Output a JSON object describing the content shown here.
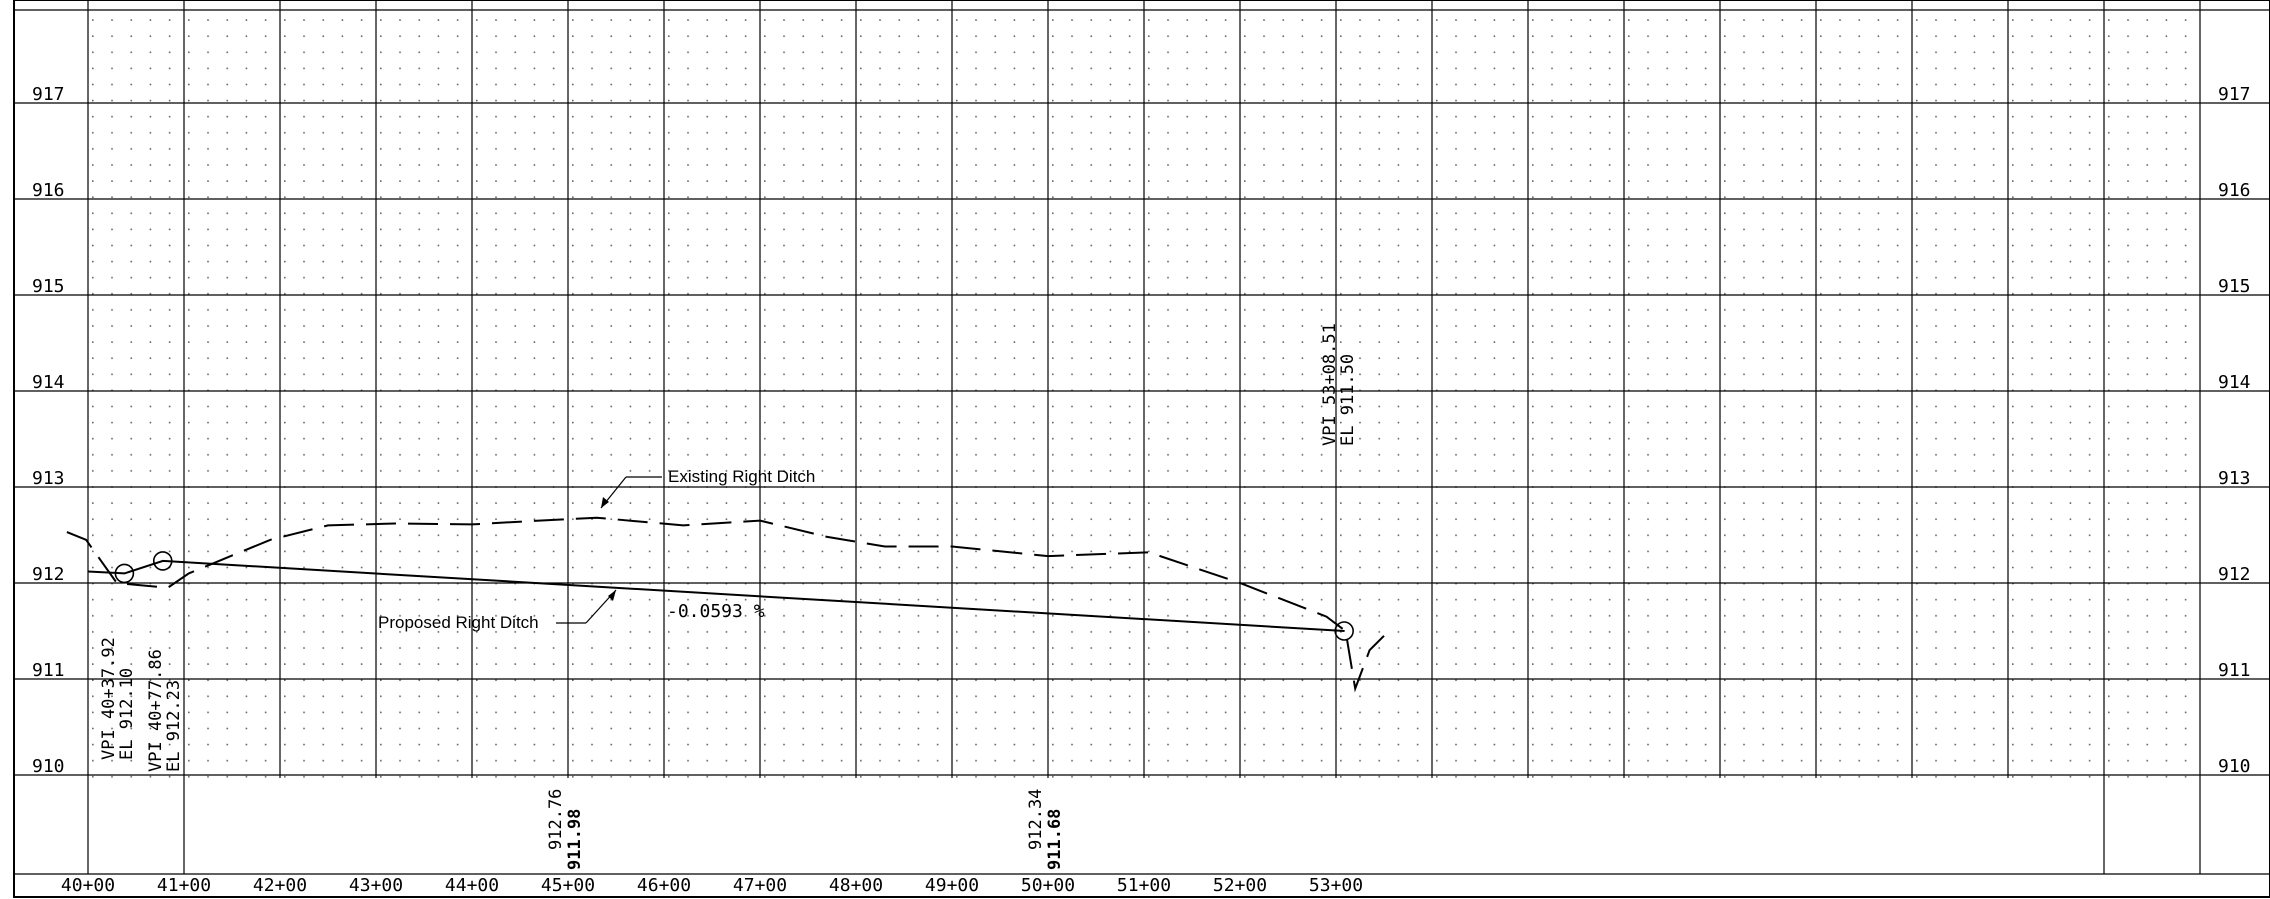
{
  "elevation_labels": [
    "917",
    "916",
    "915",
    "914",
    "913",
    "912",
    "911",
    "910"
  ],
  "station_labels": [
    "40+00",
    "41+00",
    "42+00",
    "43+00",
    "44+00",
    "45+00",
    "46+00",
    "47+00",
    "48+00",
    "49+00",
    "50+00",
    "51+00",
    "52+00",
    "53+00"
  ],
  "annotations": {
    "existing_ditch": "Existing Right Ditch",
    "proposed_ditch": "Proposed Right Ditch",
    "grade": "-0.0593 %",
    "vpi1_station": "VPI 40+37.92",
    "vpi1_elev": "EL 912.10",
    "vpi2_station": "VPI 40+77.86",
    "vpi2_elev": "EL 912.23",
    "vpi3_station": "VPI 53+08.51",
    "vpi3_elev": "EL 911.50"
  },
  "bottom_elevations": [
    {
      "existing": "912.76",
      "proposed": "911.98"
    },
    {
      "existing": "912.34",
      "proposed": "911.68"
    }
  ],
  "chart_data": {
    "type": "line",
    "x_unit": "station",
    "y_unit": "elevation",
    "ylim": [
      909.9,
      918
    ],
    "series": [
      {
        "name": "Existing Right Ditch",
        "style": "dashed",
        "points": [
          [
            39.78,
            912.53
          ],
          [
            39.98,
            912.45
          ],
          [
            40.3,
            912.0
          ],
          [
            40.83,
            911.95
          ],
          [
            41.05,
            912.1
          ],
          [
            41.34,
            912.22
          ],
          [
            41.9,
            912.45
          ],
          [
            42.5,
            912.6
          ],
          [
            43.2,
            912.62
          ],
          [
            44.0,
            912.61
          ],
          [
            44.7,
            912.65
          ],
          [
            45.3,
            912.68
          ],
          [
            46.2,
            912.6
          ],
          [
            47.0,
            912.65
          ],
          [
            47.7,
            912.48
          ],
          [
            48.3,
            912.38
          ],
          [
            49.0,
            912.38
          ],
          [
            50.0,
            912.28
          ],
          [
            51.05,
            912.32
          ],
          [
            52.0,
            912.0
          ],
          [
            52.9,
            911.65
          ],
          [
            53.1,
            911.5
          ],
          [
            53.2,
            910.9
          ],
          [
            53.35,
            911.3
          ],
          [
            53.5,
            911.45
          ]
        ]
      },
      {
        "name": "Proposed Right Ditch",
        "style": "solid",
        "points": [
          [
            40.0,
            912.12
          ],
          [
            40.38,
            912.1
          ],
          [
            40.78,
            912.23
          ],
          [
            53.09,
            911.5
          ]
        ]
      }
    ],
    "vpi": [
      {
        "station": "40+37.92",
        "elevation": 912.1
      },
      {
        "station": "40+77.86",
        "elevation": 912.23
      },
      {
        "station": "53+08.51",
        "elevation": 911.5
      }
    ]
  }
}
